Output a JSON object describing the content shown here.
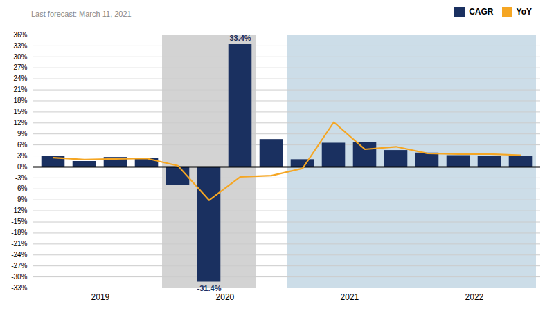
{
  "chart_data": {
    "type": "bar",
    "categories": [
      null,
      "2019",
      null,
      null,
      null,
      "2020",
      null,
      null,
      null,
      "2021",
      null,
      null,
      null,
      "2022",
      null,
      null
    ],
    "series": [
      {
        "name": "CAGR",
        "type": "bar",
        "color": "#1a3060",
        "values": [
          2.9,
          1.5,
          2.6,
          2.4,
          -5.0,
          -31.4,
          33.4,
          7.5,
          2.0,
          6.5,
          6.7,
          4.5,
          3.8,
          3.1,
          3.0,
          2.9
        ],
        "value_labels": [
          null,
          null,
          null,
          null,
          null,
          "-31.4%",
          "33.4%",
          null,
          null,
          null,
          null,
          null,
          null,
          null,
          null,
          null
        ]
      },
      {
        "name": "YoY",
        "type": "line",
        "color": "#f5a623",
        "values": [
          2.5,
          2.0,
          2.2,
          2.3,
          0.3,
          -9.1,
          -2.7,
          -2.4,
          -0.4,
          12.2,
          4.8,
          5.5,
          3.7,
          3.5,
          3.5,
          3.2
        ]
      }
    ],
    "ylim": [
      -33,
      36
    ],
    "yticks": [
      {
        "value": -33,
        "label": "-33%"
      },
      {
        "value": -30,
        "label": "-30%"
      },
      {
        "value": -27,
        "label": "-27%"
      },
      {
        "value": -24,
        "label": "-24%"
      },
      {
        "value": -21,
        "label": "-21%"
      },
      {
        "value": -18,
        "label": "-18%"
      },
      {
        "value": -15,
        "label": "-15%"
      },
      {
        "value": -12,
        "label": "-12%"
      },
      {
        "value": -9,
        "label": "-9%"
      },
      {
        "value": -6,
        "label": "-6%"
      },
      {
        "value": -3,
        "label": "-3%"
      },
      {
        "value": 0,
        "label": "0%"
      },
      {
        "value": 3,
        "label": "3%"
      },
      {
        "value": 6,
        "label": "6%"
      },
      {
        "value": 9,
        "label": "9%"
      },
      {
        "value": 12,
        "label": "12%"
      },
      {
        "value": 15,
        "label": "15%"
      },
      {
        "value": 18,
        "label": "18%"
      },
      {
        "value": 21,
        "label": "21%"
      },
      {
        "value": 24,
        "label": "24%"
      },
      {
        "value": 27,
        "label": "27%"
      },
      {
        "value": 30,
        "label": "30%"
      },
      {
        "value": 33,
        "label": "33%"
      },
      {
        "value": 36,
        "label": "36%"
      }
    ],
    "grid": true,
    "legend": "top right",
    "data_labels": true,
    "annotations": [
      "Last forecast: March 11, 2021"
    ],
    "shading": [
      {
        "start": 4,
        "end": 6,
        "color": "#d3d3d3"
      },
      {
        "start": 8,
        "end": 15,
        "color": "#ccdde8"
      }
    ]
  }
}
